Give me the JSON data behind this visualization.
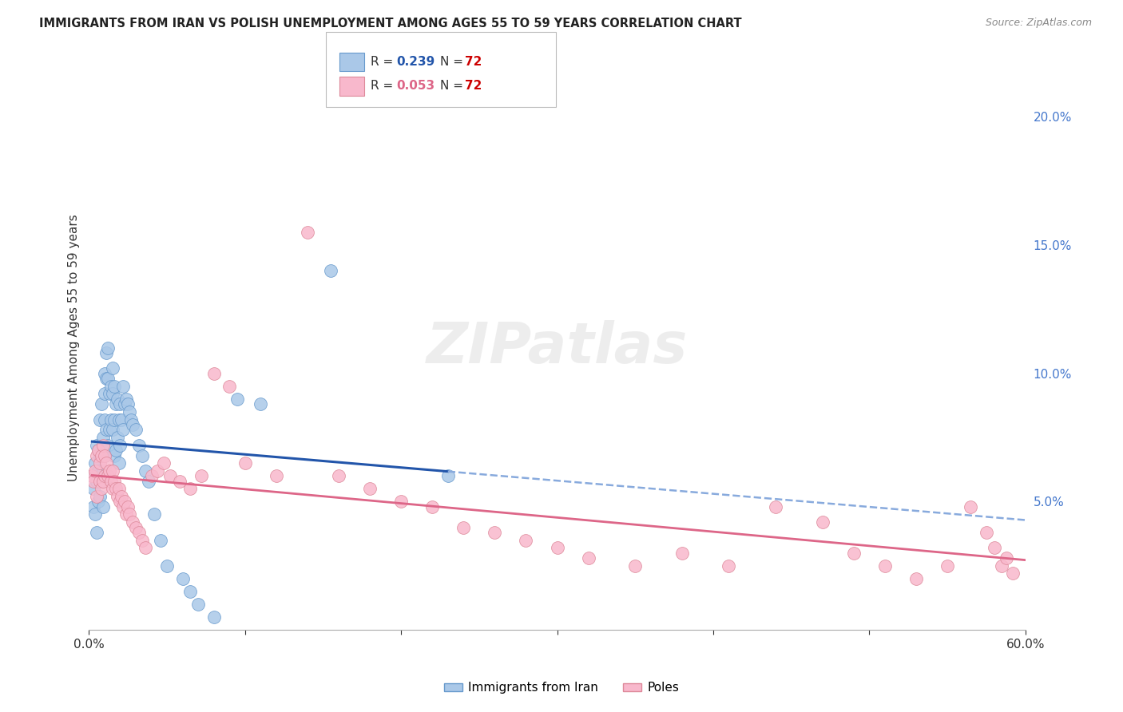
{
  "title": "IMMIGRANTS FROM IRAN VS POLISH UNEMPLOYMENT AMONG AGES 55 TO 59 YEARS CORRELATION CHART",
  "source": "Source: ZipAtlas.com",
  "ylabel": "Unemployment Among Ages 55 to 59 years",
  "xlim": [
    0,
    0.6
  ],
  "ylim": [
    0,
    0.22
  ],
  "x_tick_positions": [
    0.0,
    0.1,
    0.2,
    0.3,
    0.4,
    0.5,
    0.6
  ],
  "x_tick_labels": [
    "0.0%",
    "",
    "",
    "",
    "",
    "",
    "60.0%"
  ],
  "y_tick_positions": [
    0.05,
    0.1,
    0.15,
    0.2
  ],
  "y_tick_labels": [
    "5.0%",
    "10.0%",
    "15.0%",
    "20.0%"
  ],
  "iran_R": "0.239",
  "iran_N": "72",
  "poles_R": "0.053",
  "poles_N": "72",
  "iran_scatter_color": "#aac8e8",
  "iran_edge_color": "#6699cc",
  "iran_line_color": "#2255aa",
  "iran_line_style": "-",
  "iran_dashed_color": "#88aadd",
  "poles_scatter_color": "#f8b8cc",
  "poles_edge_color": "#dd8899",
  "poles_line_color": "#dd6688",
  "poles_line_style": "-",
  "background_color": "#ffffff",
  "grid_color": "#cccccc",
  "right_tick_color": "#4477cc",
  "watermark_color": "#dddddd",
  "watermark_alpha": 0.5,
  "iran_scatter_x": [
    0.002,
    0.003,
    0.003,
    0.004,
    0.004,
    0.005,
    0.005,
    0.005,
    0.006,
    0.006,
    0.006,
    0.007,
    0.007,
    0.007,
    0.008,
    0.008,
    0.009,
    0.009,
    0.009,
    0.01,
    0.01,
    0.01,
    0.01,
    0.011,
    0.011,
    0.011,
    0.012,
    0.012,
    0.012,
    0.013,
    0.013,
    0.014,
    0.014,
    0.015,
    0.015,
    0.015,
    0.016,
    0.016,
    0.016,
    0.017,
    0.017,
    0.018,
    0.018,
    0.019,
    0.019,
    0.02,
    0.02,
    0.021,
    0.022,
    0.022,
    0.023,
    0.024,
    0.025,
    0.026,
    0.027,
    0.028,
    0.03,
    0.032,
    0.034,
    0.036,
    0.038,
    0.042,
    0.046,
    0.05,
    0.06,
    0.065,
    0.07,
    0.08,
    0.095,
    0.11,
    0.155,
    0.23
  ],
  "iran_scatter_y": [
    0.06,
    0.055,
    0.048,
    0.065,
    0.045,
    0.072,
    0.058,
    0.038,
    0.07,
    0.062,
    0.05,
    0.082,
    0.068,
    0.052,
    0.088,
    0.058,
    0.075,
    0.062,
    0.048,
    0.1,
    0.092,
    0.082,
    0.068,
    0.108,
    0.098,
    0.078,
    0.11,
    0.098,
    0.072,
    0.092,
    0.078,
    0.095,
    0.082,
    0.102,
    0.092,
    0.078,
    0.095,
    0.082,
    0.068,
    0.088,
    0.07,
    0.09,
    0.075,
    0.082,
    0.065,
    0.088,
    0.072,
    0.082,
    0.095,
    0.078,
    0.088,
    0.09,
    0.088,
    0.085,
    0.082,
    0.08,
    0.078,
    0.072,
    0.068,
    0.062,
    0.058,
    0.045,
    0.035,
    0.025,
    0.02,
    0.015,
    0.01,
    0.005,
    0.09,
    0.088,
    0.14,
    0.06
  ],
  "poles_scatter_x": [
    0.002,
    0.003,
    0.004,
    0.005,
    0.005,
    0.006,
    0.007,
    0.007,
    0.008,
    0.008,
    0.009,
    0.009,
    0.01,
    0.01,
    0.011,
    0.012,
    0.013,
    0.014,
    0.015,
    0.015,
    0.016,
    0.017,
    0.018,
    0.019,
    0.02,
    0.021,
    0.022,
    0.023,
    0.024,
    0.025,
    0.026,
    0.028,
    0.03,
    0.032,
    0.034,
    0.036,
    0.04,
    0.044,
    0.048,
    0.052,
    0.058,
    0.065,
    0.072,
    0.08,
    0.09,
    0.1,
    0.12,
    0.14,
    0.16,
    0.18,
    0.2,
    0.22,
    0.24,
    0.26,
    0.28,
    0.3,
    0.32,
    0.35,
    0.38,
    0.41,
    0.44,
    0.47,
    0.49,
    0.51,
    0.53,
    0.55,
    0.565,
    0.575,
    0.58,
    0.585,
    0.588,
    0.592
  ],
  "poles_scatter_y": [
    0.06,
    0.058,
    0.062,
    0.068,
    0.052,
    0.07,
    0.065,
    0.058,
    0.068,
    0.055,
    0.072,
    0.058,
    0.068,
    0.06,
    0.065,
    0.06,
    0.062,
    0.058,
    0.062,
    0.055,
    0.058,
    0.055,
    0.052,
    0.055,
    0.05,
    0.052,
    0.048,
    0.05,
    0.045,
    0.048,
    0.045,
    0.042,
    0.04,
    0.038,
    0.035,
    0.032,
    0.06,
    0.062,
    0.065,
    0.06,
    0.058,
    0.055,
    0.06,
    0.1,
    0.095,
    0.065,
    0.06,
    0.155,
    0.06,
    0.055,
    0.05,
    0.048,
    0.04,
    0.038,
    0.035,
    0.032,
    0.028,
    0.025,
    0.03,
    0.025,
    0.048,
    0.042,
    0.03,
    0.025,
    0.02,
    0.025,
    0.048,
    0.038,
    0.032,
    0.025,
    0.028,
    0.022
  ]
}
